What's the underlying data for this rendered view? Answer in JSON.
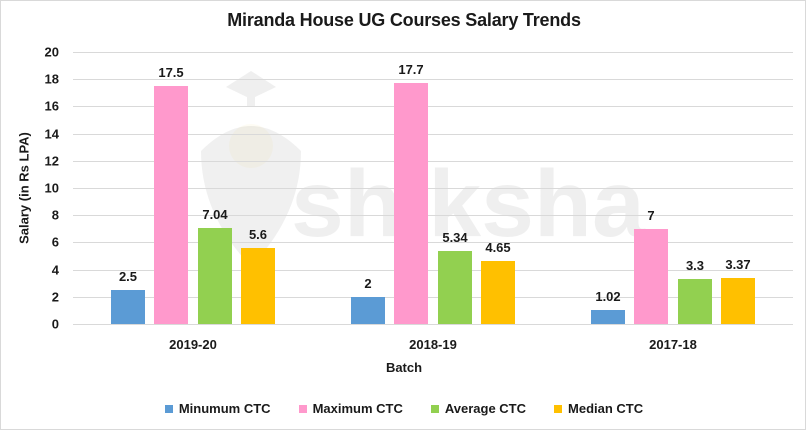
{
  "chart_data": {
    "type": "bar",
    "title": "Miranda House UG Courses Salary Trends",
    "xlabel": "Batch",
    "ylabel": "Salary (in Rs LPA)",
    "ylim": [
      0,
      20
    ],
    "yticks": [
      0,
      2,
      4,
      6,
      8,
      10,
      12,
      14,
      16,
      18,
      20
    ],
    "grid": true,
    "legend_position": "bottom",
    "categories": [
      "2019-20",
      "2018-19",
      "2017-18"
    ],
    "series": [
      {
        "name": "Minumum CTC",
        "color": "#5B9BD5",
        "values": [
          2.5,
          2,
          1.02
        ],
        "labels": [
          "2.5",
          "2",
          "1.02"
        ]
      },
      {
        "name": "Maximum CTC",
        "color": "#FF99CC",
        "values": [
          17.5,
          17.7,
          7
        ],
        "labels": [
          "17.5",
          "17.7",
          "7"
        ]
      },
      {
        "name": "Average CTC",
        "color": "#92D050",
        "values": [
          7.04,
          5.34,
          3.3
        ],
        "labels": [
          "7.04",
          "5.34",
          "3.3"
        ]
      },
      {
        "name": "Median CTC",
        "color": "#FFC000",
        "values": [
          5.6,
          4.65,
          3.37
        ],
        "labels": [
          "5.6",
          "4.65",
          "3.37"
        ]
      }
    ],
    "watermark": "shiksha"
  }
}
